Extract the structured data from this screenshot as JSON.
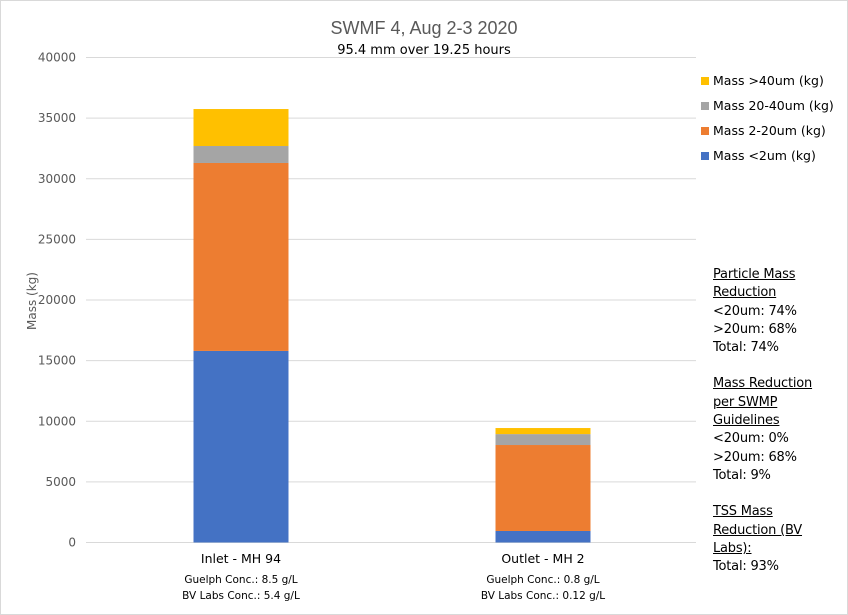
{
  "chart_data": {
    "type": "bar",
    "stacked": true,
    "title": "SWMF 4, Aug 2-3 2020",
    "subtitle": "95.4 mm over 19.25 hours",
    "xlabel": "",
    "ylabel": "Mass (kg)",
    "ylim": [
      0,
      40000
    ],
    "yticks": [
      0,
      5000,
      10000,
      15000,
      20000,
      25000,
      30000,
      35000,
      40000
    ],
    "grid": true,
    "legend_position": "right",
    "categories": [
      "Inlet - MH 94",
      "Outlet - MH 2"
    ],
    "category_sublabels": [
      [
        "Guelph Conc.: 8.5 g/L",
        "BV Labs Conc.: 5.4 g/L"
      ],
      [
        "Guelph Conc.: 0.8 g/L",
        "BV Labs Conc.: 0.12 g/L"
      ]
    ],
    "series": [
      {
        "name": "Mass <2um (kg)",
        "color": "#4472c4",
        "values": [
          15800,
          950
        ]
      },
      {
        "name": "Mass 2-20um (kg)",
        "color": "#ed7d31",
        "values": [
          15500,
          7090
        ]
      },
      {
        "name": "Mass 20-40um (kg)",
        "color": "#a5a5a5",
        "values": [
          1400,
          900
        ]
      },
      {
        "name": "Mass >40um (kg)",
        "color": "#ffc000",
        "values": [
          3050,
          500
        ]
      }
    ]
  },
  "annotations": {
    "particle": {
      "heading": [
        "Particle Mass",
        "Reduction"
      ],
      "lines": [
        "<20um: 74%",
        ">20um: 68%",
        "Total: 74%"
      ]
    },
    "swmp": {
      "heading": [
        "Mass Reduction",
        "per  SWMP",
        "Guidelines"
      ],
      "lines": [
        "<20um: 0%",
        ">20um: 68%",
        "Total: 9%"
      ]
    },
    "tss": {
      "heading": [
        "TSS Mass",
        "Reduction (BV",
        "Labs):"
      ],
      "lines": [
        "Total: 93%"
      ]
    }
  }
}
